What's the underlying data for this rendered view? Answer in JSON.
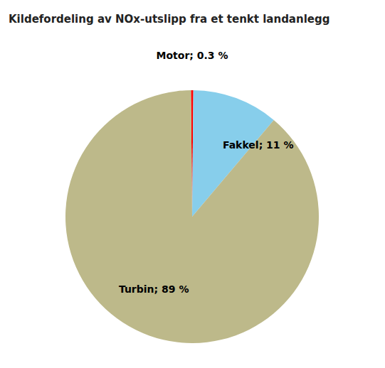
{
  "chart_data": {
    "type": "pie",
    "title": "Kildefordeling av NOx-utslipp fra et tenkt landanlegg",
    "values": [
      0.3,
      11.0,
      88.7
    ],
    "value_labels": [
      "Motor; 0.3 %",
      "Fakkel; 11 %",
      "Turbin; 89 %"
    ],
    "colors": [
      "#FF0000",
      "#87CEEB",
      "#BDB98A"
    ],
    "data_labels": true
  }
}
